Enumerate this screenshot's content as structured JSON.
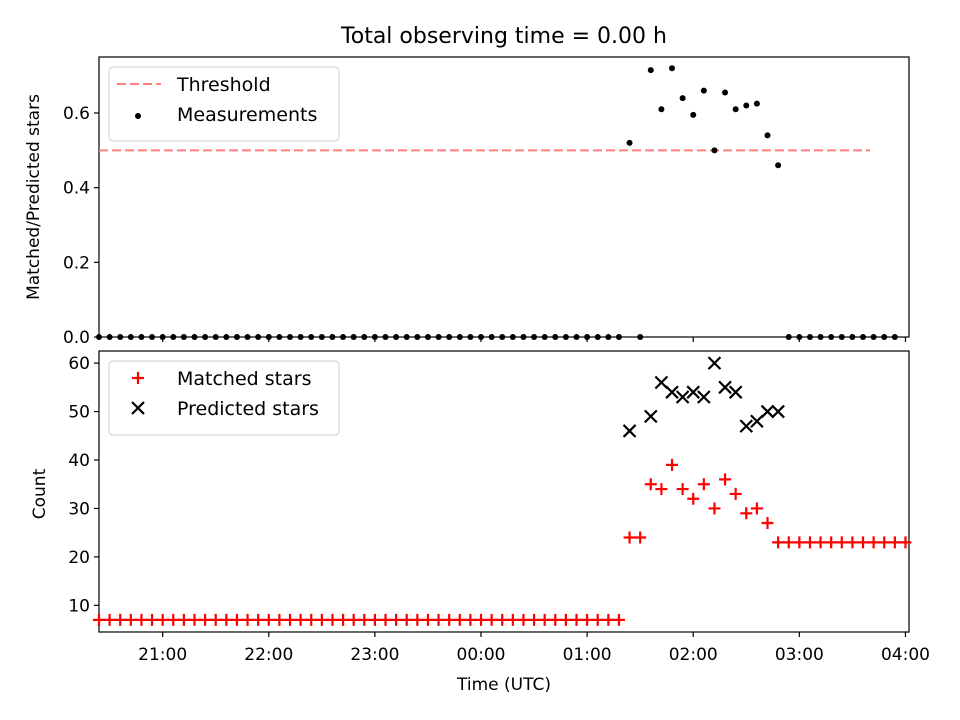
{
  "chart_data": [
    {
      "type": "scatter",
      "title": "Total observing time = 0.00 h",
      "xlabel": "",
      "ylabel": "Matched/Predicted stars",
      "xlim": [
        "20:24",
        "04:02"
      ],
      "ylim": [
        0,
        0.75
      ],
      "yticks": [
        "0.0",
        "0.2",
        "0.4",
        "0.6"
      ],
      "grid": false,
      "legend_position": "top-left",
      "threshold": {
        "name": "Threshold",
        "value": 0.5,
        "x_range": [
          "20:24",
          "03:40"
        ],
        "color": "#ff7f7f",
        "style": "dashed"
      },
      "series": [
        {
          "name": "Measurements",
          "marker": "dot",
          "color": "#000000",
          "points": [
            [
              "20:24",
              0
            ],
            [
              "20:30",
              0
            ],
            [
              "20:36",
              0
            ],
            [
              "20:42",
              0
            ],
            [
              "20:48",
              0
            ],
            [
              "20:54",
              0
            ],
            [
              "21:00",
              0
            ],
            [
              "21:06",
              0
            ],
            [
              "21:12",
              0
            ],
            [
              "21:18",
              0
            ],
            [
              "21:24",
              0
            ],
            [
              "21:30",
              0
            ],
            [
              "21:36",
              0
            ],
            [
              "21:42",
              0
            ],
            [
              "21:48",
              0
            ],
            [
              "21:54",
              0
            ],
            [
              "22:00",
              0
            ],
            [
              "22:06",
              0
            ],
            [
              "22:12",
              0
            ],
            [
              "22:18",
              0
            ],
            [
              "22:24",
              0
            ],
            [
              "22:30",
              0
            ],
            [
              "22:36",
              0
            ],
            [
              "22:42",
              0
            ],
            [
              "22:48",
              0
            ],
            [
              "22:54",
              0
            ],
            [
              "23:00",
              0
            ],
            [
              "23:06",
              0
            ],
            [
              "23:12",
              0
            ],
            [
              "23:18",
              0
            ],
            [
              "23:24",
              0
            ],
            [
              "23:30",
              0
            ],
            [
              "23:36",
              0
            ],
            [
              "23:42",
              0
            ],
            [
              "23:48",
              0
            ],
            [
              "23:54",
              0
            ],
            [
              "00:00",
              0
            ],
            [
              "00:06",
              0
            ],
            [
              "00:12",
              0
            ],
            [
              "00:18",
              0
            ],
            [
              "00:24",
              0
            ],
            [
              "00:30",
              0
            ],
            [
              "00:36",
              0
            ],
            [
              "00:42",
              0
            ],
            [
              "00:48",
              0
            ],
            [
              "00:54",
              0
            ],
            [
              "01:00",
              0
            ],
            [
              "01:06",
              0
            ],
            [
              "01:12",
              0
            ],
            [
              "01:18",
              0
            ],
            [
              "01:24",
              0.52
            ],
            [
              "01:30",
              0
            ],
            [
              "01:36",
              0.715
            ],
            [
              "01:42",
              0.61
            ],
            [
              "01:48",
              0.72
            ],
            [
              "01:54",
              0.64
            ],
            [
              "02:00",
              0.595
            ],
            [
              "02:06",
              0.66
            ],
            [
              "02:12",
              0.5
            ],
            [
              "02:18",
              0.655
            ],
            [
              "02:24",
              0.61
            ],
            [
              "02:30",
              0.62
            ],
            [
              "02:36",
              0.625
            ],
            [
              "02:42",
              0.54
            ],
            [
              "02:48",
              0.46
            ],
            [
              "02:54",
              0
            ],
            [
              "03:00",
              0
            ],
            [
              "03:06",
              0
            ],
            [
              "03:12",
              0
            ],
            [
              "03:18",
              0
            ],
            [
              "03:24",
              0
            ],
            [
              "03:30",
              0
            ],
            [
              "03:36",
              0
            ],
            [
              "03:42",
              0
            ],
            [
              "03:48",
              0
            ],
            [
              "03:54",
              0
            ]
          ]
        }
      ]
    },
    {
      "type": "scatter",
      "title": "",
      "xlabel": "Time (UTC)",
      "ylabel": "Count",
      "xlim": [
        "20:24",
        "04:02"
      ],
      "ylim": [
        4.5,
        62.5
      ],
      "yticks": [
        "10",
        "20",
        "30",
        "40",
        "50",
        "60"
      ],
      "xticks": [
        "21:00",
        "22:00",
        "23:00",
        "00:00",
        "01:00",
        "02:00",
        "03:00",
        "04:00"
      ],
      "grid": false,
      "legend_position": "top-left",
      "series": [
        {
          "name": "Matched stars",
          "marker": "plus",
          "color": "#ff0000",
          "points": [
            [
              "20:24",
              7
            ],
            [
              "20:30",
              7
            ],
            [
              "20:36",
              7
            ],
            [
              "20:42",
              7
            ],
            [
              "20:48",
              7
            ],
            [
              "20:54",
              7
            ],
            [
              "21:00",
              7
            ],
            [
              "21:06",
              7
            ],
            [
              "21:12",
              7
            ],
            [
              "21:18",
              7
            ],
            [
              "21:24",
              7
            ],
            [
              "21:30",
              7
            ],
            [
              "21:36",
              7
            ],
            [
              "21:42",
              7
            ],
            [
              "21:48",
              7
            ],
            [
              "21:54",
              7
            ],
            [
              "22:00",
              7
            ],
            [
              "22:06",
              7
            ],
            [
              "22:12",
              7
            ],
            [
              "22:18",
              7
            ],
            [
              "22:24",
              7
            ],
            [
              "22:30",
              7
            ],
            [
              "22:36",
              7
            ],
            [
              "22:42",
              7
            ],
            [
              "22:48",
              7
            ],
            [
              "22:54",
              7
            ],
            [
              "23:00",
              7
            ],
            [
              "23:06",
              7
            ],
            [
              "23:12",
              7
            ],
            [
              "23:18",
              7
            ],
            [
              "23:24",
              7
            ],
            [
              "23:30",
              7
            ],
            [
              "23:36",
              7
            ],
            [
              "23:42",
              7
            ],
            [
              "23:48",
              7
            ],
            [
              "23:54",
              7
            ],
            [
              "00:00",
              7
            ],
            [
              "00:06",
              7
            ],
            [
              "00:12",
              7
            ],
            [
              "00:18",
              7
            ],
            [
              "00:24",
              7
            ],
            [
              "00:30",
              7
            ],
            [
              "00:36",
              7
            ],
            [
              "00:42",
              7
            ],
            [
              "00:48",
              7
            ],
            [
              "00:54",
              7
            ],
            [
              "01:00",
              7
            ],
            [
              "01:06",
              7
            ],
            [
              "01:12",
              7
            ],
            [
              "01:18",
              7
            ],
            [
              "01:24",
              24
            ],
            [
              "01:30",
              24
            ],
            [
              "01:36",
              35
            ],
            [
              "01:42",
              34
            ],
            [
              "01:48",
              39
            ],
            [
              "01:54",
              34
            ],
            [
              "02:00",
              32
            ],
            [
              "02:06",
              35
            ],
            [
              "02:12",
              30
            ],
            [
              "02:18",
              36
            ],
            [
              "02:24",
              33
            ],
            [
              "02:30",
              29
            ],
            [
              "02:36",
              30
            ],
            [
              "02:42",
              27
            ],
            [
              "02:48",
              23
            ],
            [
              "02:54",
              23
            ],
            [
              "03:00",
              23
            ],
            [
              "03:06",
              23
            ],
            [
              "03:12",
              23
            ],
            [
              "03:18",
              23
            ],
            [
              "03:24",
              23
            ],
            [
              "03:30",
              23
            ],
            [
              "03:36",
              23
            ],
            [
              "03:42",
              23
            ],
            [
              "03:48",
              23
            ],
            [
              "03:54",
              23
            ],
            [
              "04:00",
              23
            ]
          ]
        },
        {
          "name": "Predicted stars",
          "marker": "x",
          "color": "#000000",
          "points": [
            [
              "01:24",
              46
            ],
            [
              "01:36",
              49
            ],
            [
              "01:42",
              56
            ],
            [
              "01:48",
              54
            ],
            [
              "01:54",
              53
            ],
            [
              "02:00",
              54
            ],
            [
              "02:06",
              53
            ],
            [
              "02:12",
              60
            ],
            [
              "02:18",
              55
            ],
            [
              "02:24",
              54
            ],
            [
              "02:30",
              47
            ],
            [
              "02:36",
              48
            ],
            [
              "02:42",
              50
            ],
            [
              "02:48",
              50
            ]
          ]
        }
      ]
    }
  ]
}
